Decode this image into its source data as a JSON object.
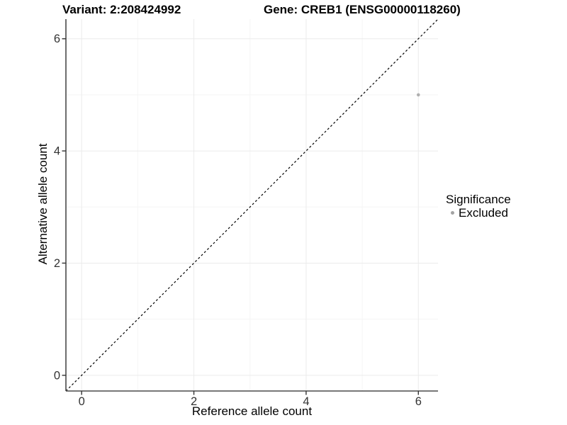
{
  "chart_data": {
    "type": "scatter",
    "title_left": "Variant: 2:208424992",
    "title_right": "Gene: CREB1 (ENSG00000118260)",
    "xlabel": "Reference allele count",
    "ylabel": "Alternative allele count",
    "xlim": [
      -0.28,
      6.35
    ],
    "ylim": [
      -0.28,
      6.35
    ],
    "xticks": [
      0,
      2,
      4,
      6
    ],
    "yticks": [
      0,
      2,
      4,
      6
    ],
    "xticks_minor": [
      1,
      3,
      5
    ],
    "yticks_minor": [
      1,
      3,
      5
    ],
    "grid": "major and minor, light gray on white panel",
    "identity_line": {
      "equation": "y = x",
      "style": "dashed",
      "color": "#000000"
    },
    "series": [
      {
        "name": "Excluded",
        "color": "#afafaf",
        "points": [
          {
            "x": 6,
            "y": 5
          }
        ]
      }
    ],
    "legend": {
      "title": "Significance",
      "position": "right",
      "items": [
        {
          "label": "Excluded",
          "color": "#a3a3a3"
        }
      ]
    },
    "style": {
      "grid_major_color": "#ebebeb",
      "grid_minor_color": "#f5f5f5",
      "axis_line_color": "#4a4a4a",
      "tick_mark_color": "#333333",
      "tick_label_color": "#333333",
      "point_radius": 2.3,
      "legend_dot_radius": 2.5
    }
  }
}
